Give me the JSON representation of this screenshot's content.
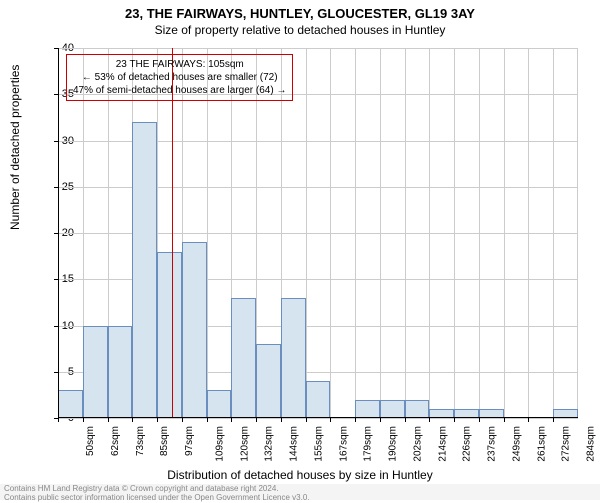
{
  "chart": {
    "type": "histogram",
    "title_main": "23, THE FAIRWAYS, HUNTLEY, GLOUCESTER, GL19 3AY",
    "title_sub": "Size of property relative to detached houses in Huntley",
    "title_fontsize": 13,
    "subtitle_fontsize": 12,
    "background_color": "#ffffff",
    "grid_color": "#cccccc",
    "bar_fill": "#d6e4f0",
    "bar_stroke": "#6a8fbf",
    "ref_line_color": "#cc0000",
    "annotation_border": "#cc0000",
    "yaxis": {
      "label": "Number of detached properties",
      "min": 0,
      "max": 40,
      "tick_step": 5,
      "ticks": [
        0,
        5,
        10,
        15,
        20,
        25,
        30,
        35,
        40
      ],
      "label_fontsize": 12,
      "tick_fontsize": 11
    },
    "xaxis": {
      "label": "Distribution of detached houses by size in Huntley",
      "label_fontsize": 12,
      "tick_fontsize": 10,
      "categories": [
        "50sqm",
        "62sqm",
        "73sqm",
        "85sqm",
        "97sqm",
        "109sqm",
        "120sqm",
        "132sqm",
        "144sqm",
        "155sqm",
        "167sqm",
        "179sqm",
        "190sqm",
        "202sqm",
        "214sqm",
        "226sqm",
        "237sqm",
        "249sqm",
        "261sqm",
        "272sqm",
        "284sqm"
      ],
      "values": [
        3,
        10,
        10,
        32,
        18,
        19,
        3,
        13,
        8,
        13,
        4,
        0,
        2,
        2,
        2,
        1,
        1,
        1,
        0,
        0,
        1
      ]
    },
    "reference_x_index": 4.6,
    "annotation": {
      "lines": [
        "23 THE FAIRWAYS: 105sqm",
        "← 53% of detached houses are smaller (72)",
        "47% of semi-detached houses are larger (64) →"
      ]
    },
    "footer": {
      "line1": "Contains HM Land Registry data © Crown copyright and database right 2024.",
      "line2": "Contains public sector information licensed under the Open Government Licence v3.0.",
      "color": "#888888",
      "bg": "#f4f4f4"
    }
  }
}
